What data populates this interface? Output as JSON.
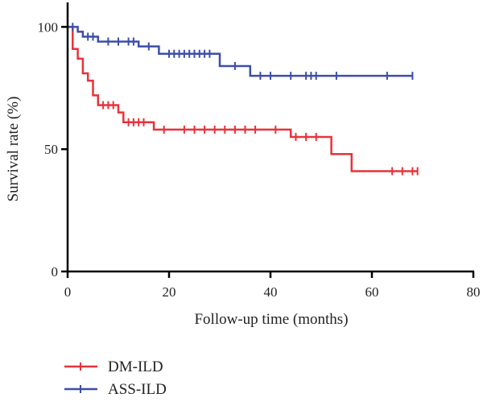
{
  "chart_data": {
    "type": "line",
    "step": true,
    "xlabel": "Follow-up time (months)",
    "ylabel": "Survival rate (%)",
    "xlim": [
      0,
      80
    ],
    "ylim": [
      0,
      110
    ],
    "xticks": [
      "0",
      "20",
      "40",
      "60",
      "80"
    ],
    "yticks": [
      "0",
      "50",
      "100"
    ],
    "grid": false,
    "legend_position": "bottom-left",
    "series": [
      {
        "name": "DM-ILD",
        "color": "#e8323a",
        "steps": [
          [
            0,
            100
          ],
          [
            1,
            91
          ],
          [
            2,
            87
          ],
          [
            3,
            81
          ],
          [
            4,
            78
          ],
          [
            5,
            72
          ],
          [
            6,
            68
          ],
          [
            10,
            65
          ],
          [
            11,
            61
          ],
          [
            17,
            58
          ],
          [
            44,
            55
          ],
          [
            52,
            48
          ],
          [
            56,
            41
          ],
          [
            69,
            41
          ]
        ],
        "censored": [
          [
            7,
            68
          ],
          [
            8,
            68
          ],
          [
            9,
            68
          ],
          [
            12,
            61
          ],
          [
            13,
            61
          ],
          [
            14,
            61
          ],
          [
            15,
            61
          ],
          [
            19,
            58
          ],
          [
            23,
            58
          ],
          [
            25,
            58
          ],
          [
            27,
            58
          ],
          [
            29,
            58
          ],
          [
            31,
            58
          ],
          [
            33,
            58
          ],
          [
            35,
            58
          ],
          [
            37,
            58
          ],
          [
            41,
            58
          ],
          [
            45,
            55
          ],
          [
            47,
            55
          ],
          [
            49,
            55
          ],
          [
            64,
            41
          ],
          [
            66,
            41
          ],
          [
            68,
            41
          ],
          [
            69,
            41
          ]
        ]
      },
      {
        "name": "ASS-ILD",
        "color": "#3d4eaa",
        "steps": [
          [
            0,
            100
          ],
          [
            2,
            98
          ],
          [
            3,
            96
          ],
          [
            6,
            94
          ],
          [
            14,
            92
          ],
          [
            18,
            89
          ],
          [
            30,
            84
          ],
          [
            36,
            80
          ],
          [
            68,
            80
          ]
        ],
        "censored": [
          [
            1,
            100
          ],
          [
            4,
            96
          ],
          [
            5,
            96
          ],
          [
            8,
            94
          ],
          [
            10,
            94
          ],
          [
            12,
            94
          ],
          [
            13,
            94
          ],
          [
            16,
            92
          ],
          [
            20,
            89
          ],
          [
            21,
            89
          ],
          [
            22,
            89
          ],
          [
            23,
            89
          ],
          [
            24,
            89
          ],
          [
            25,
            89
          ],
          [
            26,
            89
          ],
          [
            27,
            89
          ],
          [
            28,
            89
          ],
          [
            33,
            84
          ],
          [
            38,
            80
          ],
          [
            40,
            80
          ],
          [
            44,
            80
          ],
          [
            47,
            80
          ],
          [
            48,
            80
          ],
          [
            49,
            80
          ],
          [
            53,
            80
          ],
          [
            63,
            80
          ],
          [
            68,
            80
          ]
        ]
      }
    ]
  }
}
